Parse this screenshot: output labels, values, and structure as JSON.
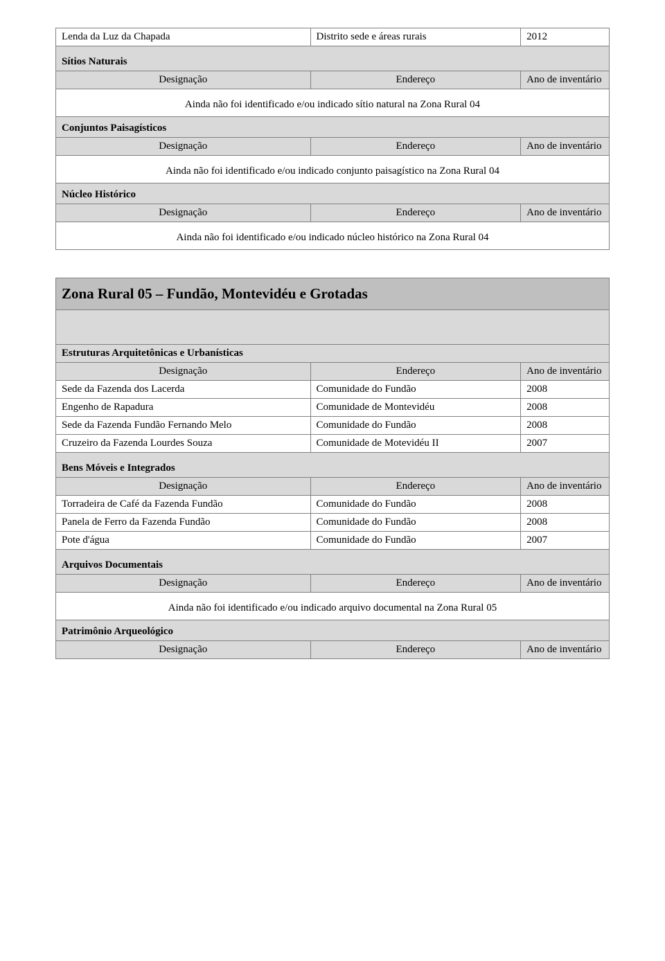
{
  "top_row": {
    "c1": "Lenda da Luz da Chapada",
    "c2": "Distrito sede e áreas rurais",
    "c3": "2012"
  },
  "header": {
    "designacao": "Designação",
    "endereco": "Endereço",
    "ano": "Ano de inventário"
  },
  "sec1": {
    "sitios_naturais": "Sítios Naturais",
    "note1": "Ainda não foi identificado e/ou indicado sítio natural na Zona Rural 04",
    "conjuntos": "Conjuntos Paisagísticos",
    "note2": "Ainda não foi identificado e/ou indicado conjunto paisagístico na Zona Rural 04",
    "nucleo": "Núcleo Histórico",
    "note3": "Ainda não foi identificado e/ou indicado núcleo histórico na Zona Rural 04"
  },
  "big_title": "Zona Rural 05 – Fundão, Montevidéu e Grotadas",
  "sec2": {
    "estruturas": "Estruturas Arquitetônicas e Urbanísticas",
    "rows1": [
      [
        "Sede da Fazenda dos Lacerda",
        "Comunidade do Fundão",
        "2008"
      ],
      [
        "Engenho de Rapadura",
        "Comunidade de Montevidéu",
        "2008"
      ],
      [
        "Sede da Fazenda Fundão Fernando Melo",
        "Comunidade do Fundão",
        "2008"
      ],
      [
        "Cruzeiro da Fazenda Lourdes Souza",
        "Comunidade de Motevidéu II",
        "2007"
      ]
    ],
    "bens": "Bens Móveis e Integrados",
    "rows2": [
      [
        "Torradeira de Café da Fazenda Fundão",
        "Comunidade do Fundão",
        "2008"
      ],
      [
        "Panela de Ferro da Fazenda Fundão",
        "Comunidade do Fundão",
        "2008"
      ],
      [
        "Pote d'água",
        "Comunidade do Fundão",
        "2007"
      ]
    ],
    "arquivos": "Arquivos Documentais",
    "note4": "Ainda não foi identificado e/ou indicado arquivo documental na Zona Rural 05",
    "patrimonio": "Patrimônio Arqueológico"
  }
}
